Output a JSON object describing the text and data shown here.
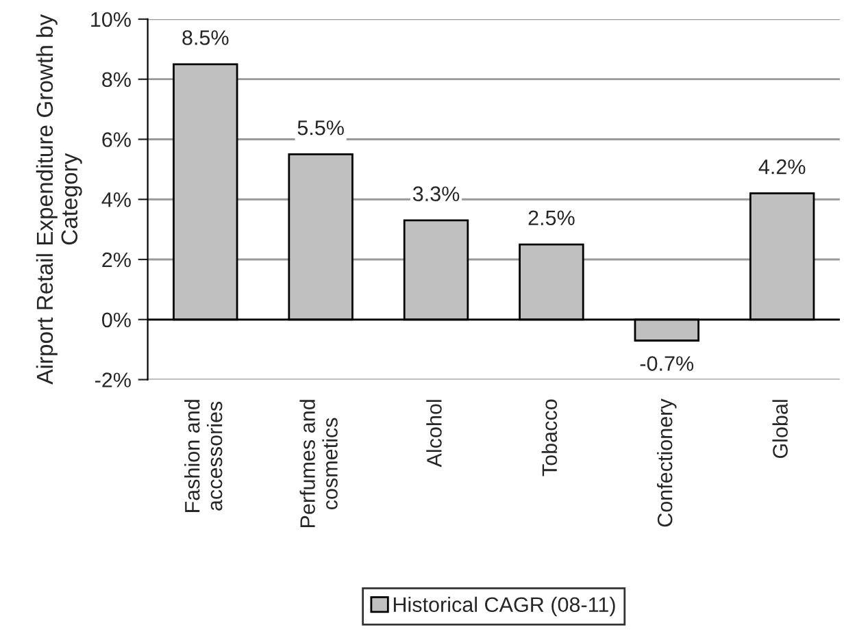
{
  "chart_data": {
    "type": "bar",
    "ylabel": "Airport Retail Expenditure Growth by\nCategory",
    "categories": [
      "Fashion and\naccessories",
      "Perfumes and\ncosmetics",
      "Alcohol",
      "Tobacco",
      "Confectionery",
      "Global"
    ],
    "series": [
      {
        "name": "Historical CAGR (08-11)",
        "color": "#c0c0c0",
        "values": [
          8.5,
          5.5,
          3.3,
          2.5,
          -0.7,
          4.2
        ],
        "value_labels": [
          "8.5%",
          "5.5%",
          "3.3%",
          "2.5%",
          "-0.7%",
          "4.2%"
        ]
      }
    ],
    "ylim": [
      -2,
      10
    ],
    "yticks": [
      {
        "value": -2,
        "label": "-2%"
      },
      {
        "value": 0,
        "label": "0%"
      },
      {
        "value": 2,
        "label": "2%"
      },
      {
        "value": 4,
        "label": "4%"
      },
      {
        "value": 6,
        "label": "6%"
      },
      {
        "value": 8,
        "label": "8%"
      },
      {
        "value": 10,
        "label": "10%"
      }
    ],
    "grid": "y",
    "legend": "bottom"
  }
}
